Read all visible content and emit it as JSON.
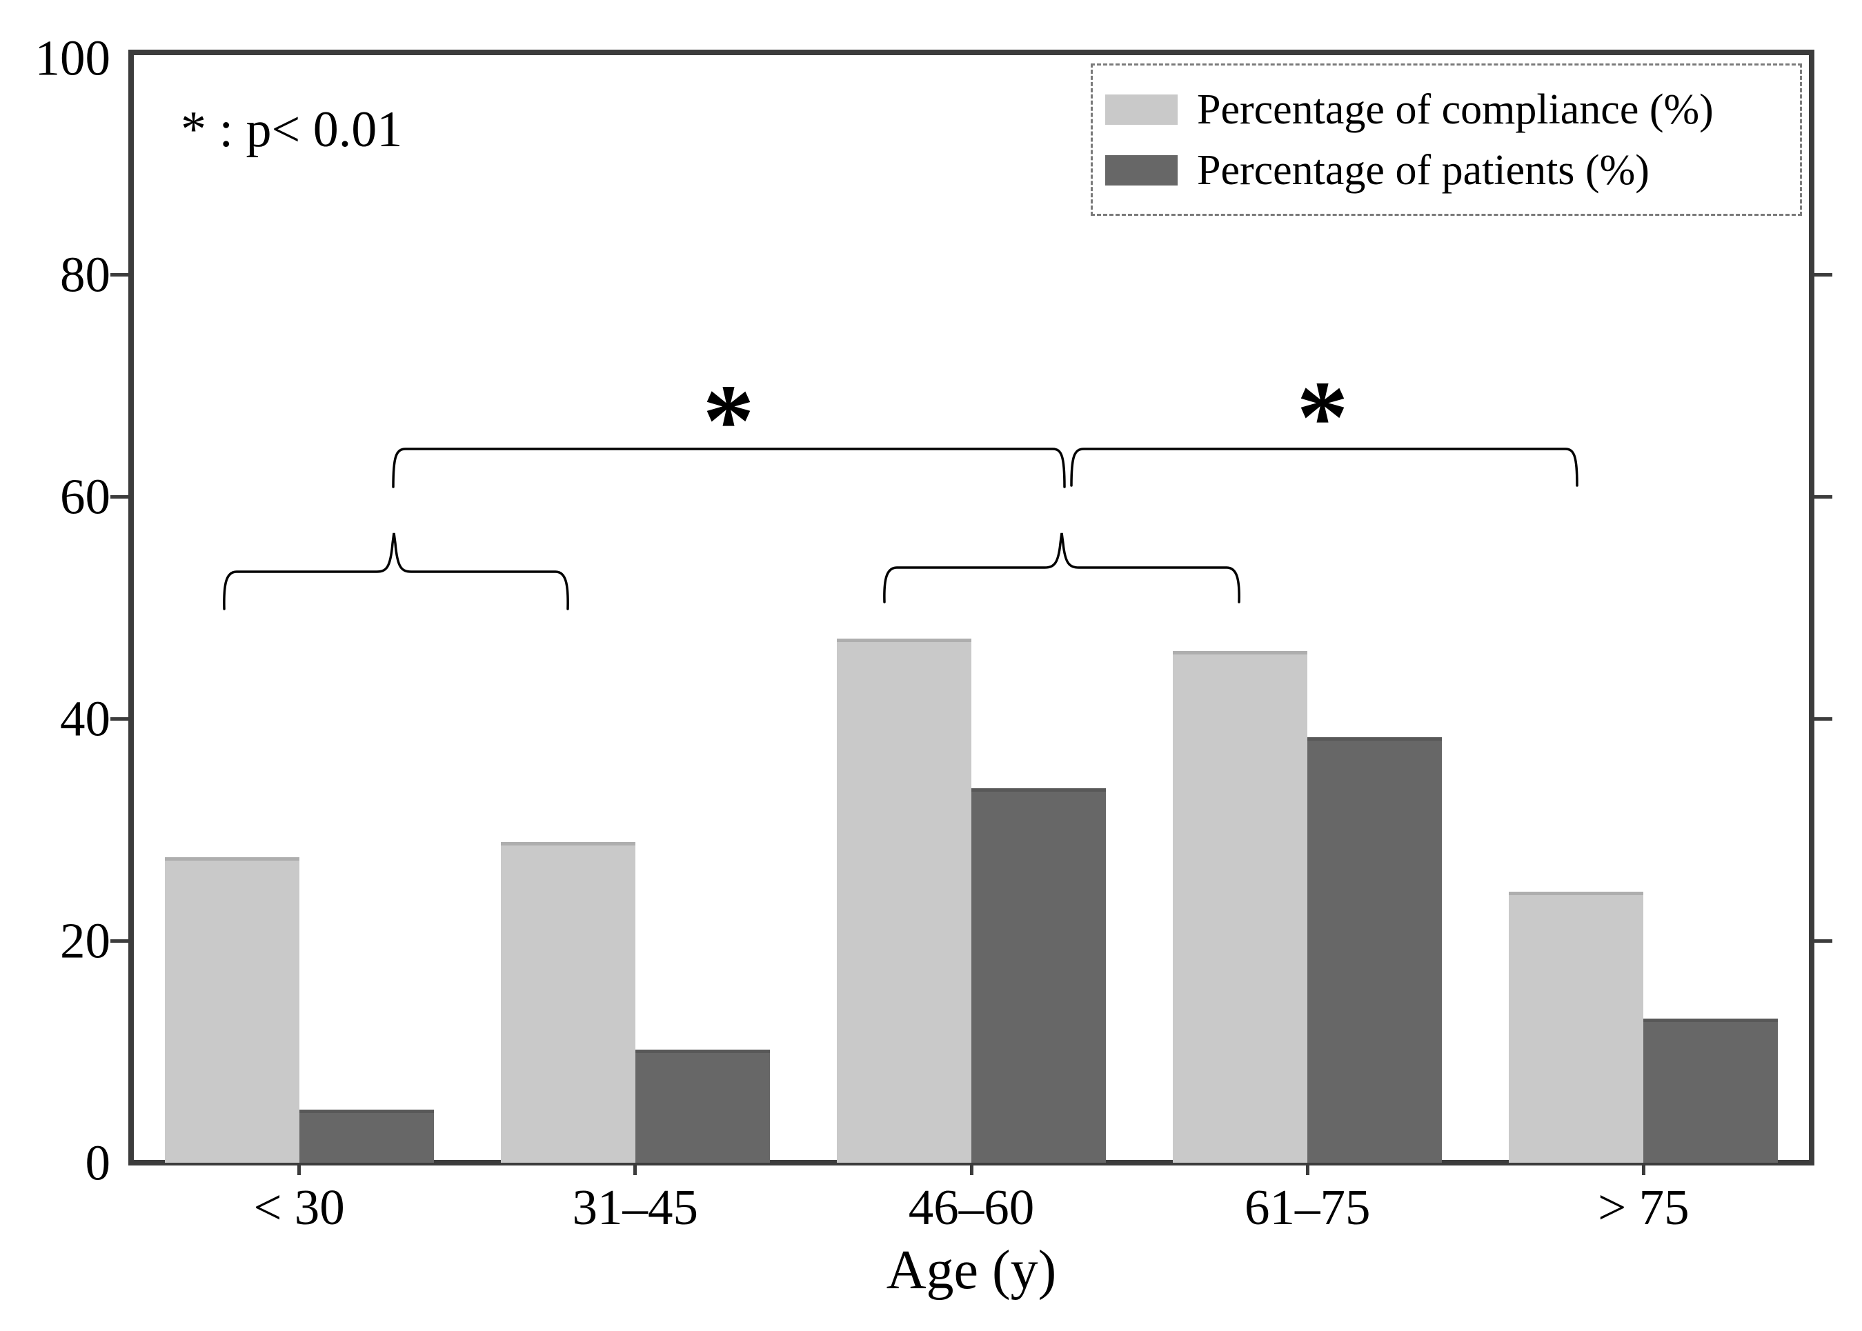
{
  "chart_data": {
    "type": "bar",
    "title": "",
    "categories": [
      "< 30",
      "31–45",
      "46–60",
      "61–75",
      "> 75"
    ],
    "series": [
      {
        "name": "Percentage of compliance (%)",
        "color": "#c9c9c9",
        "edge_color": "#aeaeae",
        "values": [
          27.5,
          28.9,
          47.2,
          46.1,
          24.4
        ]
      },
      {
        "name": "Percentage of patients (%)",
        "color": "#676767",
        "edge_color": "#585858",
        "values": [
          4.8,
          10.2,
          33.7,
          38.3,
          13.0
        ]
      }
    ],
    "xlabel": "Age (y)",
    "ylabel": "",
    "ylim": [
      0,
      100
    ],
    "yticks": [
      "0",
      "20",
      "40",
      "60",
      "80",
      "100"
    ],
    "grid": false,
    "legend_position": "top-right",
    "spine_color": "#3c3c3c",
    "brace_color": "#000000",
    "annotation_text": "* : p< 0.01",
    "significance_symbol": "*",
    "sig_upper_brackets": [
      {
        "x1": 570,
        "x2": 1543,
        "y": 651,
        "tail_y": 706,
        "star_x": 1056,
        "star_top": 535
      },
      {
        "x1": 1553,
        "x2": 2286,
        "y": 651,
        "tail_y": 704,
        "star_x": 1917,
        "star_top": 530
      }
    ],
    "sig_lower_braces": [
      {
        "x1": 325,
        "x2": 823,
        "y": 829,
        "apex_x": 571,
        "apex_y": 773,
        "tail_y": 883
      },
      {
        "x1": 1282,
        "x2": 1796,
        "y": 823,
        "apex_x": 1539,
        "apex_y": 773,
        "tail_y": 873
      }
    ]
  },
  "legend": {
    "items": [
      {
        "label": "Percentage of compliance (%)"
      },
      {
        "label": "Percentage of patients (%)"
      }
    ]
  },
  "layout_text": {
    "x_axis_title": "Age (y)",
    "p_note": "* : p< 0.01"
  }
}
